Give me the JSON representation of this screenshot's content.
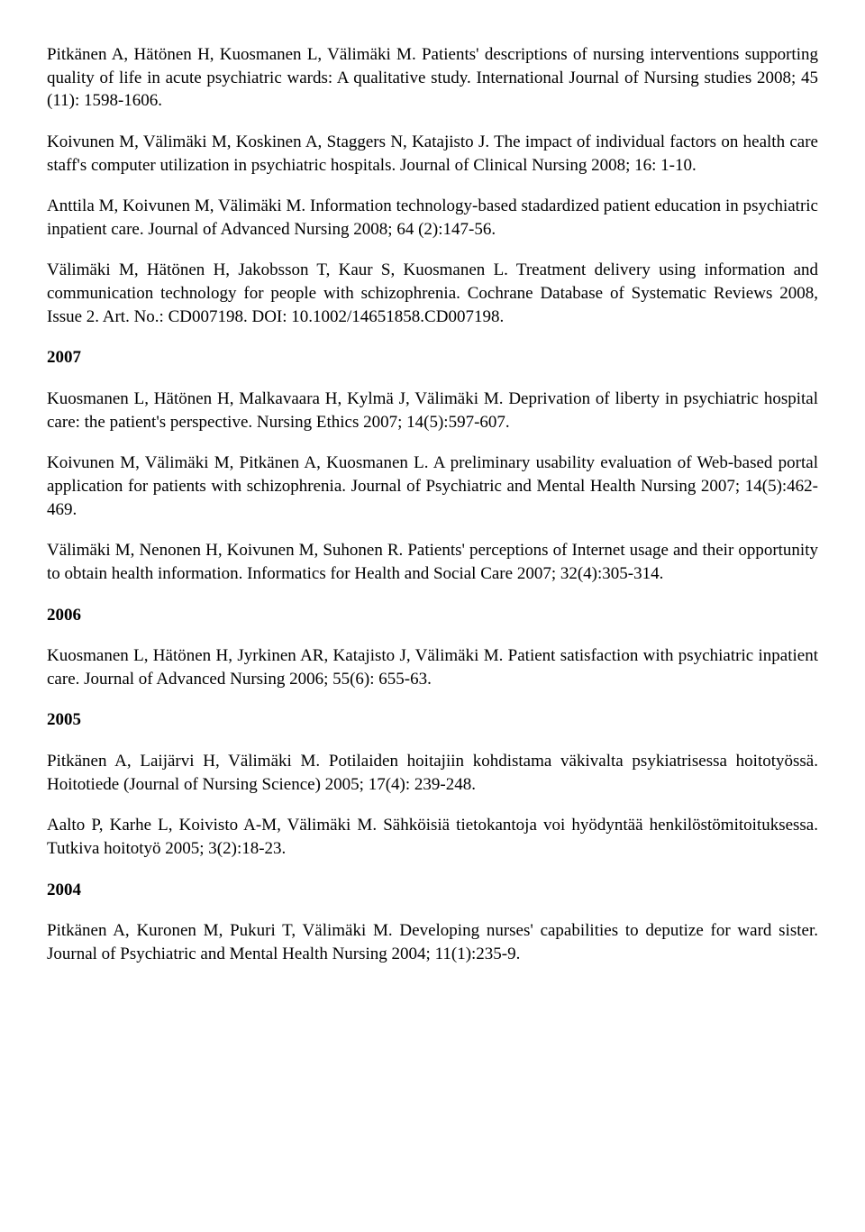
{
  "refs_top": [
    "Pitkänen A, Hätönen H, Kuosmanen L, Välimäki M. Patients' descriptions of nursing interventions supporting quality of life in acute psychiatric wards: A qualitative study. International Journal of Nursing studies 2008; 45 (11): 1598-1606.",
    "Koivunen M, Välimäki M, Koskinen A, Staggers N, Katajisto J. The impact of individual factors on health care staff's computer utilization in psychiatric hospitals. Journal of Clinical Nursing 2008; 16: 1-10.",
    "Anttila M, Koivunen M, Välimäki M. Information technology-based stadardized patient education in psychiatric inpatient care. Journal of Advanced Nursing 2008; 64 (2):147-56.",
    "Välimäki M, Hätönen H, Jakobsson T, Kaur S, Kuosmanen L. Treatment delivery using information and communication technology for people with schizophrenia. Cochrane Database of Systematic Reviews 2008, Issue 2. Art. No.: CD007198. DOI: 10.1002/14651858.CD007198."
  ],
  "sections": [
    {
      "year": "2007",
      "refs": [
        "Kuosmanen L, Hätönen H, Malkavaara H, Kylmä J, Välimäki M. Deprivation of liberty in psychiatric hospital care: the patient's perspective. Nursing Ethics 2007; 14(5):597-607.",
        "Koivunen M, Välimäki M, Pitkänen A, Kuosmanen L. A preliminary usability evaluation of Web-based portal application for patients with schizophrenia. Journal of Psychiatric and Mental Health Nursing 2007; 14(5):462-469.",
        "Välimäki M, Nenonen H, Koivunen M, Suhonen R. Patients' perceptions of Internet usage and their opportunity to obtain health information. Informatics for Health and Social Care 2007; 32(4):305-314."
      ]
    },
    {
      "year": "2006",
      "refs": [
        "Kuosmanen L, Hätönen H, Jyrkinen AR, Katajisto J, Välimäki M. Patient satisfaction with psychiatric inpatient care. Journal of Advanced Nursing 2006; 55(6): 655-63."
      ]
    },
    {
      "year": "2005",
      "refs": [
        "Pitkänen A, Laijärvi H, Välimäki M. Potilaiden hoitajiin kohdistama väkivalta psykiatrisessa hoitotyössä. Hoitotiede (Journal of Nursing Science) 2005; 17(4): 239-248.",
        "Aalto P, Karhe L, Koivisto A-M, Välimäki M. Sähköisiä tietokantoja voi hyödyntää henkilöstömitoituksessa. Tutkiva hoitotyö 2005; 3(2):18-23."
      ]
    },
    {
      "year": "2004",
      "refs": [
        "Pitkänen A, Kuronen M, Pukuri T, Välimäki M. Developing nurses' capabilities to deputize for ward sister. Journal of Psychiatric and Mental Health Nursing 2004; 11(1):235-9."
      ]
    }
  ]
}
